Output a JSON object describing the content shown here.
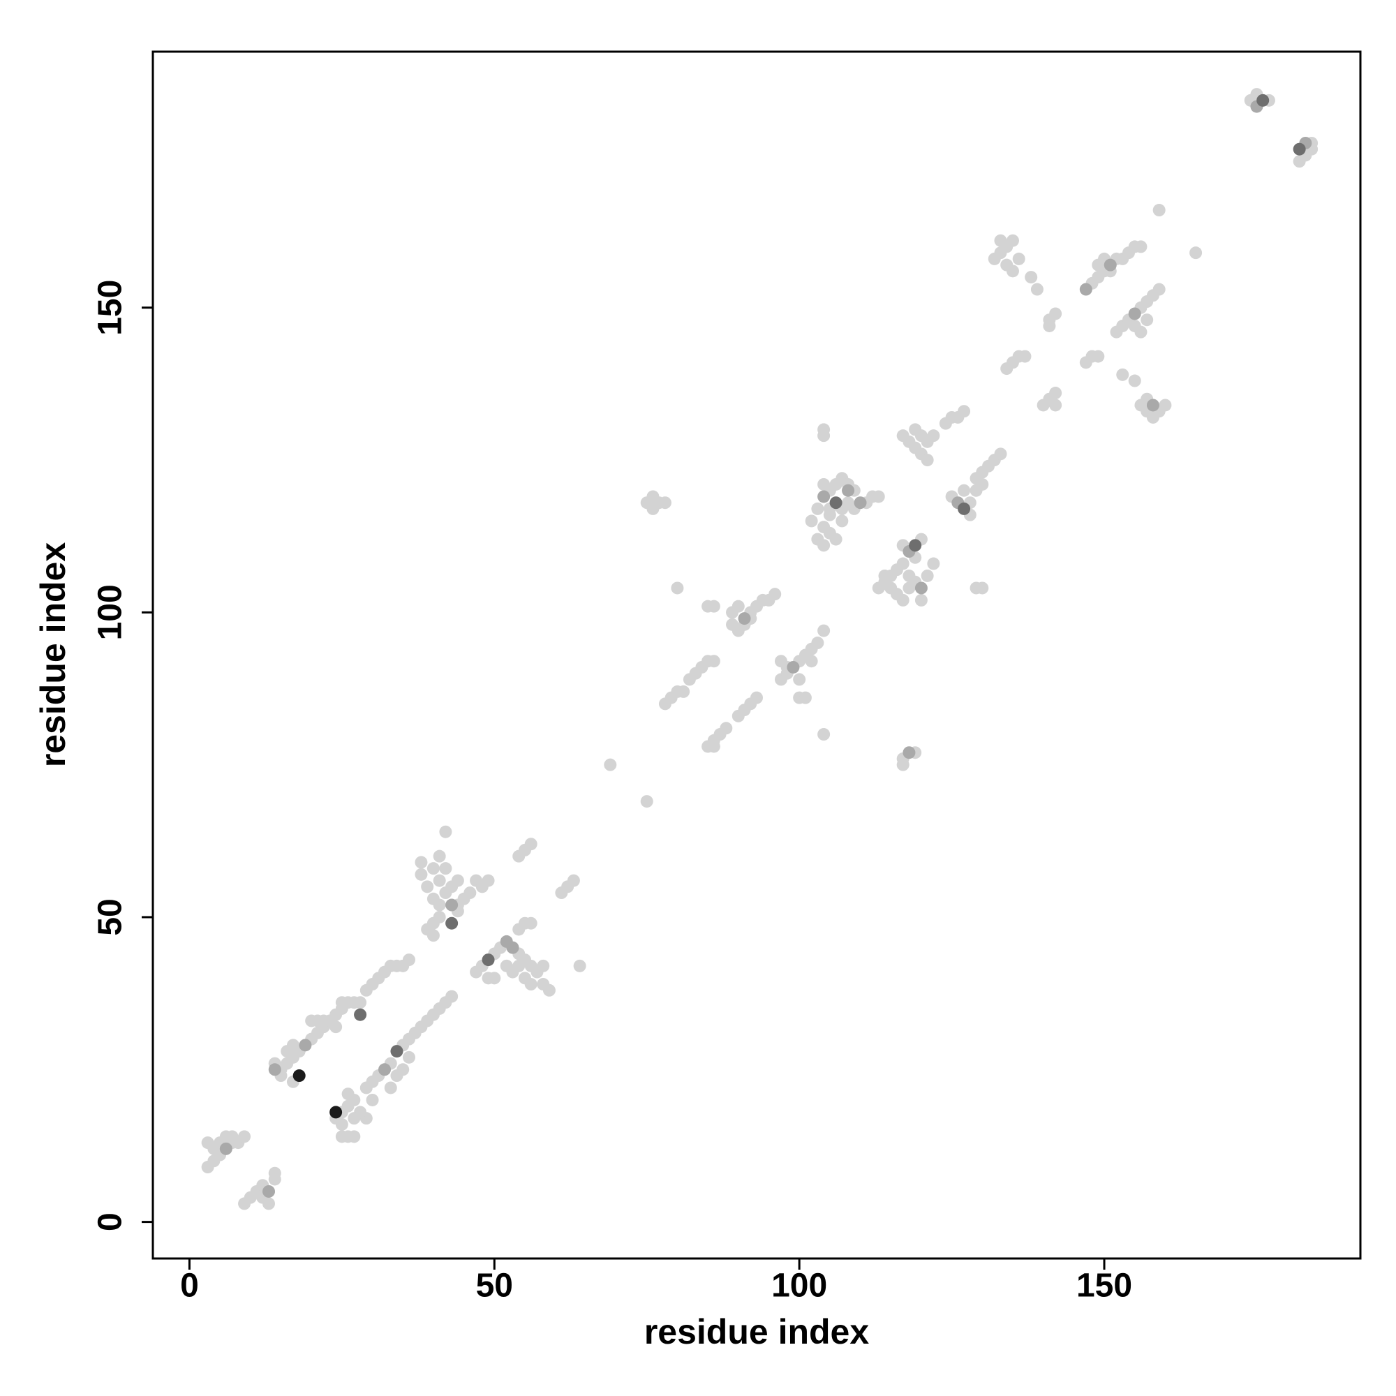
{
  "chart_data": {
    "type": "scatter",
    "xlabel": "residue index",
    "ylabel": "residue index",
    "xlim": [
      -6,
      192
    ],
    "ylim": [
      -6,
      192
    ],
    "xticks": [
      0,
      50,
      100,
      150
    ],
    "yticks": [
      0,
      50,
      100,
      150
    ],
    "series": [
      {
        "color": "#d3d3d3",
        "x": [
          3,
          4,
          5,
          7,
          8,
          3,
          4,
          5,
          6,
          7,
          9,
          9,
          10,
          11,
          12,
          14,
          13,
          12,
          14,
          14,
          15,
          16,
          17,
          18,
          20,
          21,
          22,
          23,
          24,
          25,
          26,
          27,
          28,
          17,
          20,
          21,
          22,
          25,
          24,
          16,
          15,
          17,
          29,
          30,
          31,
          32,
          33,
          34,
          35,
          36,
          24,
          25,
          25,
          26,
          27,
          25,
          26,
          27,
          29,
          30,
          31,
          33,
          35,
          36,
          30,
          29,
          28,
          33,
          35,
          36,
          34,
          27,
          26,
          37,
          38,
          39,
          40,
          41,
          42,
          43,
          38,
          38,
          39,
          40,
          41,
          42,
          44,
          45,
          41,
          40,
          42,
          41,
          42,
          39,
          40,
          41,
          44,
          46,
          47,
          40,
          43,
          44,
          48,
          49,
          47,
          48,
          50,
          51,
          54,
          55,
          56,
          57,
          58,
          59,
          58,
          56,
          55,
          52,
          50,
          49,
          53,
          54,
          55,
          56,
          54,
          64,
          54,
          55,
          56,
          61,
          62,
          63,
          69,
          75,
          75,
          76,
          77,
          78,
          76,
          80,
          78,
          79,
          80,
          81,
          82,
          83,
          84,
          85,
          86,
          85,
          86,
          85,
          86,
          87,
          88,
          86,
          89,
          89,
          90,
          92,
          93,
          94,
          95,
          96,
          90,
          92,
          91,
          90,
          91,
          92,
          93,
          97,
          98,
          100,
          101,
          102,
          103,
          104,
          98,
          100,
          102,
          97,
          100,
          101,
          104,
          102,
          103,
          105,
          106,
          107,
          108,
          109,
          111,
          112,
          113,
          104,
          105,
          106,
          104,
          103,
          105,
          107,
          108,
          109,
          107,
          104,
          104,
          104,
          105,
          113,
          114,
          115,
          116,
          117,
          120,
          116,
          117,
          118,
          119,
          121,
          122,
          118,
          115,
          120,
          114,
          117,
          119,
          117,
          117,
          119,
          117,
          118,
          119,
          120,
          121,
          122,
          119,
          120,
          121,
          124,
          125,
          126,
          127,
          125,
          128,
          129,
          130,
          127,
          128,
          129,
          130,
          131,
          132,
          133,
          129,
          130,
          132,
          133,
          134,
          135,
          134,
          135,
          133,
          136,
          138,
          139,
          141,
          142,
          141,
          134,
          135,
          136,
          137,
          140,
          141,
          142,
          142,
          148,
          149,
          150,
          152,
          153,
          154,
          155,
          149,
          150,
          151,
          156,
          147,
          148,
          149,
          152,
          153,
          154,
          156,
          157,
          158,
          159,
          155,
          156,
          157,
          153,
          155,
          156,
          157,
          159,
          160,
          158,
          157,
          159,
          165,
          174,
          177,
          175,
          183,
          184,
          184,
          182
        ],
        "values": [
          9,
          10,
          11,
          13,
          13,
          13,
          12,
          13,
          14,
          14,
          14,
          3,
          4,
          5,
          6,
          8,
          3,
          4,
          7,
          26,
          25,
          26,
          27,
          28,
          30,
          31,
          32,
          33,
          34,
          35,
          36,
          36,
          36,
          29,
          33,
          33,
          33,
          36,
          32,
          28,
          24,
          23,
          38,
          39,
          40,
          41,
          42,
          42,
          42,
          43,
          17,
          16,
          14,
          14,
          14,
          18,
          19,
          20,
          22,
          23,
          24,
          26,
          29,
          30,
          20,
          17,
          18,
          22,
          25,
          27,
          24,
          17,
          21,
          31,
          32,
          33,
          34,
          35,
          36,
          37,
          57,
          59,
          55,
          58,
          56,
          54,
          52,
          53,
          52,
          53,
          58,
          60,
          64,
          48,
          47,
          50,
          51,
          54,
          56,
          49,
          55,
          56,
          55,
          56,
          41,
          42,
          44,
          45,
          44,
          43,
          42,
          41,
          42,
          38,
          39,
          39,
          40,
          42,
          40,
          40,
          41,
          48,
          49,
          49,
          42,
          42,
          60,
          61,
          62,
          54,
          55,
          56,
          75,
          69,
          118,
          117,
          118,
          118,
          119,
          104,
          85,
          86,
          87,
          87,
          89,
          90,
          91,
          92,
          92,
          101,
          101,
          78,
          79,
          80,
          81,
          78,
          98,
          100,
          101,
          100,
          101,
          102,
          102,
          103,
          97,
          99,
          98,
          83,
          84,
          85,
          86,
          89,
          90,
          92,
          93,
          94,
          95,
          97,
          91,
          89,
          92,
          92,
          86,
          86,
          80,
          115,
          117,
          120,
          121,
          122,
          121,
          120,
          118,
          119,
          119,
          114,
          113,
          112,
          111,
          112,
          116,
          117,
          118,
          117,
          115,
          121,
          129,
          130,
          117,
          104,
          105,
          106,
          107,
          108,
          112,
          103,
          102,
          104,
          105,
          106,
          108,
          106,
          104,
          102,
          106,
          111,
          109,
          76,
          75,
          77,
          129,
          128,
          127,
          126,
          128,
          129,
          130,
          129,
          125,
          131,
          132,
          132,
          133,
          119,
          118,
          120,
          121,
          120,
          116,
          122,
          123,
          124,
          125,
          126,
          104,
          104,
          158,
          159,
          160,
          161,
          157,
          156,
          161,
          158,
          155,
          153,
          148,
          149,
          147,
          140,
          141,
          142,
          142,
          134,
          135,
          136,
          134,
          154,
          155,
          156,
          158,
          158,
          159,
          160,
          157,
          158,
          156,
          160,
          141,
          142,
          142,
          146,
          147,
          148,
          150,
          151,
          152,
          153,
          147,
          146,
          148,
          139,
          138,
          134,
          133,
          133,
          134,
          132,
          135,
          166,
          159,
          184,
          184,
          185,
          175,
          176,
          177,
          174
        ]
      },
      {
        "color": "#a9a9a9",
        "x": [
          6,
          13,
          14,
          19,
          32,
          43,
          52,
          53,
          99,
          108,
          110,
          118,
          120,
          126,
          151,
          175,
          183,
          91,
          104,
          147,
          155,
          158,
          118
        ],
        "values": [
          12,
          5,
          25,
          29,
          25,
          52,
          46,
          45,
          91,
          120,
          118,
          110,
          104,
          118,
          157,
          183,
          177,
          99,
          119,
          153,
          149,
          134,
          77
        ]
      },
      {
        "color": "#6e6e6e",
        "x": [
          28,
          34,
          43,
          49,
          106,
          119,
          127,
          176,
          182
        ],
        "values": [
          34,
          28,
          49,
          43,
          118,
          111,
          117,
          184,
          176
        ]
      },
      {
        "color": "#1a1a1a",
        "x": [
          18,
          24
        ],
        "values": [
          24,
          18
        ]
      }
    ]
  }
}
